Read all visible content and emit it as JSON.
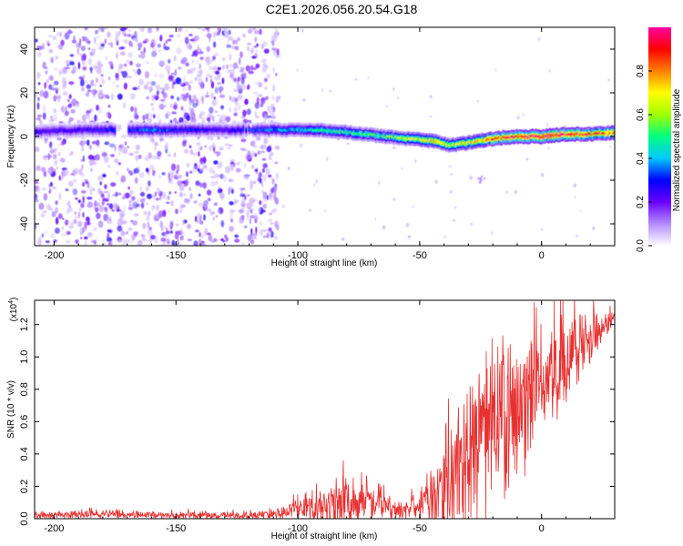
{
  "title": "C2E1.2026.056.20.54.G18",
  "chart_data": [
    {
      "type": "heatmap",
      "name": "spectrogram",
      "xlabel": "Height of straight line (km)",
      "ylabel": "Frequency (Hz)",
      "xlim": [
        -208,
        30
      ],
      "ylim": [
        -50,
        50
      ],
      "xticks": [
        -200,
        -150,
        -100,
        -50,
        0
      ],
      "yticks": [
        -40,
        -20,
        0,
        20,
        40
      ],
      "colorbar": {
        "label": "Normalized spectral amplitude",
        "range": [
          0,
          1
        ],
        "ticks": [
          0.0,
          0.2,
          0.4,
          0.6,
          0.8
        ],
        "colors": [
          "#ffffff",
          "#b48cff",
          "#6a00ff",
          "#0000ff",
          "#00c8ff",
          "#00ff80",
          "#a0ff00",
          "#ffff00",
          "#ff8000",
          "#ff0000",
          "#ff00a0"
        ]
      },
      "signal_ridge": {
        "x": [
          -208,
          -190,
          -160,
          -130,
          -110,
          -95,
          -80,
          -65,
          -55,
          -45,
          -38,
          -30,
          -20,
          -10,
          0,
          10,
          20,
          30
        ],
        "frequency": [
          2,
          3,
          3,
          3,
          3,
          3,
          2,
          0,
          -1,
          -2,
          -4,
          -3,
          -1,
          0,
          0,
          1,
          1,
          2
        ],
        "peak_amplitude": [
          0.25,
          0.25,
          0.35,
          0.25,
          0.35,
          0.45,
          0.5,
          0.5,
          0.6,
          0.7,
          0.6,
          0.7,
          0.85,
          0.9,
          0.95,
          0.9,
          0.85,
          0.8
        ]
      },
      "noise_region_x": [
        -208,
        -108
      ]
    },
    {
      "type": "line",
      "name": "snr",
      "xlabel": "Height of straight line (km)",
      "ylabel": "SNR (10 * v/v)",
      "scale_label": "(x10",
      "scale_exponent": "4",
      "scale_suffix": ")",
      "xlim": [
        -208,
        30
      ],
      "ylim": [
        0,
        1.35
      ],
      "xticks": [
        -200,
        -150,
        -100,
        -50,
        0
      ],
      "yticks": [
        0.0,
        0.2,
        0.4,
        0.6,
        0.8,
        1.0,
        1.2
      ],
      "series": [
        {
          "name": "SNR",
          "color": "#e83030",
          "x": [
            -208,
            -180,
            -150,
            -120,
            -110,
            -100,
            -90,
            -80,
            -70,
            -60,
            -50,
            -45,
            -40,
            -35,
            -30,
            -25,
            -20,
            -15,
            -10,
            -5,
            0,
            5,
            10,
            15,
            20,
            25,
            30
          ],
          "baseline": [
            0.02,
            0.03,
            0.02,
            0.02,
            0.03,
            0.06,
            0.08,
            0.11,
            0.09,
            0.05,
            0.07,
            0.12,
            0.22,
            0.32,
            0.4,
            0.47,
            0.55,
            0.62,
            0.67,
            0.73,
            0.8,
            0.9,
            1.0,
            1.08,
            1.14,
            1.18,
            1.24
          ],
          "spread": [
            0.03,
            0.03,
            0.03,
            0.03,
            0.04,
            0.08,
            0.15,
            0.22,
            0.15,
            0.06,
            0.12,
            0.2,
            0.4,
            0.55,
            0.6,
            0.58,
            0.55,
            0.55,
            0.5,
            0.48,
            0.45,
            0.4,
            0.35,
            0.28,
            0.2,
            0.12,
            0.05
          ]
        }
      ]
    }
  ]
}
